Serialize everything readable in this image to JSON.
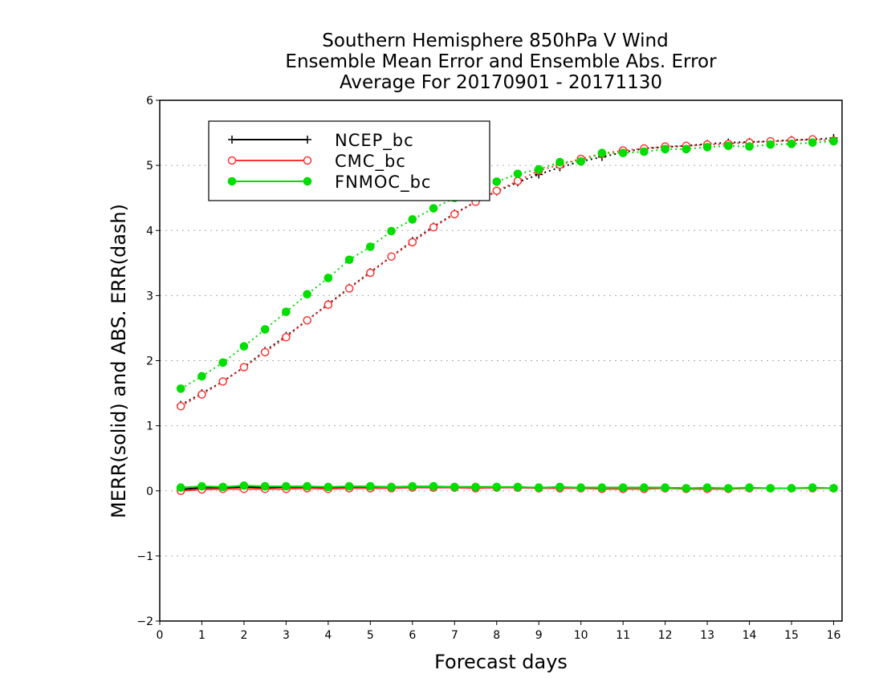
{
  "chart_data": {
    "type": "line",
    "title": [
      "Southern Hemisphere 850hPa V Wind",
      "Ensemble Mean Error and Ensemble Abs. Error",
      "Average For 20170901 - 20171130"
    ],
    "xlabel": "Forecast days",
    "ylabel": "MERR(solid) and ABS. ERR(dash)",
    "xlim": [
      0,
      16.2
    ],
    "ylim": [
      -2,
      6
    ],
    "x_ticks": [
      "0",
      "1",
      "2",
      "3",
      "4",
      "5",
      "6",
      "7",
      "8",
      "9",
      "10",
      "11",
      "12",
      "13",
      "14",
      "15",
      "16"
    ],
    "y_ticks": [
      "-2",
      "-1",
      "0",
      "1",
      "2",
      "3",
      "4",
      "5",
      "6"
    ],
    "grid": "horizontal dotted",
    "legend_position": "top-left",
    "x": [
      0.5,
      1,
      1.5,
      2,
      2.5,
      3,
      3.5,
      4,
      4.5,
      5,
      5.5,
      6,
      6.5,
      7,
      7.5,
      8,
      8.5,
      9,
      9.5,
      10,
      10.5,
      11,
      11.5,
      12,
      12.5,
      13,
      13.5,
      14,
      14.5,
      15,
      15.5,
      16
    ],
    "series": [
      {
        "name": "NCEP_bc",
        "color": "#000000",
        "marker": "plus",
        "merr": [
          0.02,
          0.05,
          0.05,
          0.06,
          0.05,
          0.06,
          0.06,
          0.05,
          0.06,
          0.06,
          0.06,
          0.06,
          0.06,
          0.06,
          0.06,
          0.06,
          0.05,
          0.05,
          0.05,
          0.05,
          0.05,
          0.05,
          0.05,
          0.05,
          0.04,
          0.04,
          0.04,
          0.04,
          0.04,
          0.04,
          0.04,
          0.04
        ],
        "abs_err": [
          1.32,
          1.5,
          1.68,
          1.9,
          2.15,
          2.38,
          2.62,
          2.87,
          3.12,
          3.36,
          3.6,
          3.84,
          4.06,
          4.26,
          4.44,
          4.6,
          4.74,
          4.86,
          4.97,
          5.06,
          5.13,
          5.2,
          5.26,
          5.28,
          5.3,
          5.33,
          5.35,
          5.36,
          5.37,
          5.39,
          5.4,
          5.42
        ]
      },
      {
        "name": "CMC_bc",
        "color": "#ff3333",
        "marker": "open-circle",
        "merr": [
          0.0,
          0.02,
          0.03,
          0.03,
          0.03,
          0.03,
          0.04,
          0.03,
          0.04,
          0.04,
          0.04,
          0.05,
          0.05,
          0.05,
          0.04,
          0.05,
          0.05,
          0.04,
          0.04,
          0.04,
          0.03,
          0.03,
          0.03,
          0.04,
          0.03,
          0.03,
          0.03,
          0.04,
          0.04,
          0.04,
          0.04,
          0.04
        ],
        "abs_err": [
          1.3,
          1.48,
          1.68,
          1.9,
          2.13,
          2.36,
          2.62,
          2.86,
          3.11,
          3.35,
          3.6,
          3.82,
          4.05,
          4.25,
          4.44,
          4.61,
          4.76,
          4.92,
          5.01,
          5.1,
          5.18,
          5.23,
          5.26,
          5.29,
          5.3,
          5.32,
          5.33,
          5.35,
          5.37,
          5.38,
          5.4,
          5.38
        ]
      },
      {
        "name": "FNMOC_bc",
        "color": "#00dd00",
        "marker": "filled-circle",
        "merr": [
          0.05,
          0.07,
          0.06,
          0.08,
          0.07,
          0.07,
          0.07,
          0.06,
          0.07,
          0.07,
          0.06,
          0.07,
          0.07,
          0.06,
          0.06,
          0.06,
          0.06,
          0.05,
          0.06,
          0.05,
          0.05,
          0.05,
          0.05,
          0.05,
          0.04,
          0.05,
          0.04,
          0.05,
          0.04,
          0.04,
          0.05,
          0.04
        ],
        "abs_err": [
          1.57,
          1.76,
          1.97,
          2.22,
          2.48,
          2.75,
          3.02,
          3.27,
          3.55,
          3.75,
          3.99,
          4.17,
          4.34,
          4.5,
          4.63,
          4.75,
          4.87,
          4.94,
          5.05,
          5.06,
          5.19,
          5.19,
          5.21,
          5.25,
          5.25,
          5.28,
          5.3,
          5.29,
          5.32,
          5.33,
          5.35,
          5.37
        ]
      }
    ]
  }
}
